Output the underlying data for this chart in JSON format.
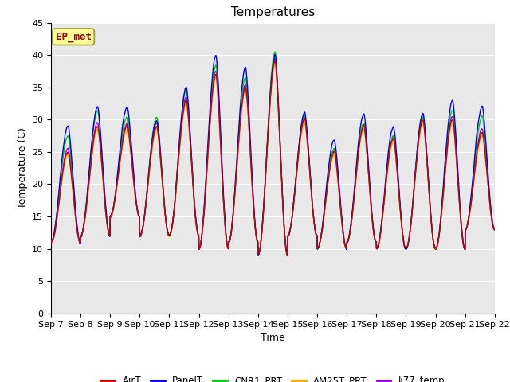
{
  "title": "Temperatures",
  "xlabel": "Time",
  "ylabel": "Temperature (C)",
  "ylim": [
    0,
    45
  ],
  "yticks": [
    0,
    5,
    10,
    15,
    20,
    25,
    30,
    35,
    40,
    45
  ],
  "date_labels": [
    "Sep 7",
    "Sep 8",
    "Sep 9",
    "Sep 10",
    "Sep 11",
    "Sep 12",
    "Sep 13",
    "Sep 14",
    "Sep 15",
    "Sep 16",
    "Sep 17",
    "Sep 18",
    "Sep 19",
    "Sep 20",
    "Sep 21",
    "Sep 22"
  ],
  "annotation_text": "EP_met",
  "annotation_color": "#990000",
  "annotation_bg": "#ffff99",
  "annotation_edge": "#999933",
  "legend_entries": [
    "AirT",
    "PanelT",
    "CNR1_PRT",
    "AM25T_PRT",
    "li77_temp"
  ],
  "line_colors": [
    "#cc0000",
    "#0000ee",
    "#00cc00",
    "#ffaa00",
    "#9900cc"
  ],
  "fig_bg": "#ffffff",
  "plot_bg": "#e8e8e8",
  "grid_color": "#ffffff",
  "title_fontsize": 11,
  "label_fontsize": 9,
  "tick_fontsize": 8,
  "n_days": 15,
  "pts_per_day": 144,
  "daily_peaks": [
    25,
    29,
    29,
    29,
    33,
    37,
    35,
    39,
    30,
    25,
    29,
    27,
    30,
    30,
    28
  ],
  "daily_mins": [
    11,
    12,
    15,
    12,
    12,
    10,
    11,
    9,
    12,
    10,
    11,
    10,
    10,
    10,
    13
  ],
  "panel_extra": [
    3,
    2,
    2,
    0,
    1,
    2,
    2,
    0,
    0,
    1,
    1,
    1,
    0,
    2,
    3
  ],
  "cnr1_extra": [
    2,
    2,
    1,
    1,
    1,
    1,
    1,
    1,
    0,
    0,
    0,
    0,
    0,
    1,
    2
  ]
}
